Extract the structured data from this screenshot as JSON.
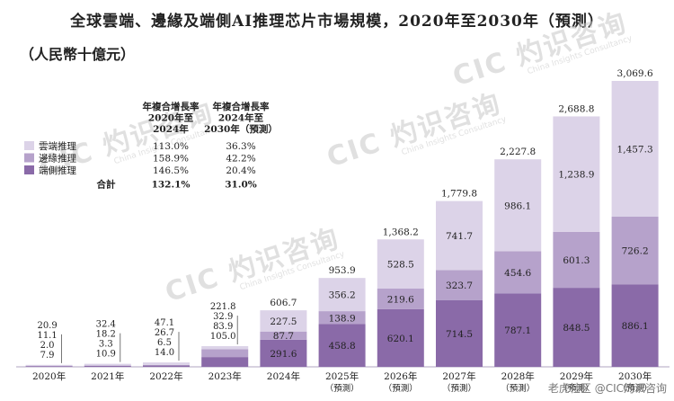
{
  "title": "全球雲端、邊緣及端側AI推理芯片市場規模，2020年至2030年（預測）",
  "unit": "（人民幣十億元）",
  "watermark": {
    "brand": "CIC 灼识咨询",
    "sub": "China Insights Consultancy"
  },
  "source_note": "老虎社区 @CIC灼识咨询",
  "cagr_table": {
    "headers": [
      "年複合增長率\n2020年至\n2024年",
      "年複合增長率\n2024年至\n2030年（預測）"
    ],
    "rows": [
      {
        "label": "雲端推理",
        "c1": "113.0%",
        "c2": "36.3%"
      },
      {
        "label": "邊緣推理",
        "c1": "158.9%",
        "c2": "42.2%"
      },
      {
        "label": "端側推理",
        "c1": "146.5%",
        "c2": "20.4%"
      }
    ],
    "total": {
      "label": "合計",
      "c1": "132.1%",
      "c2": "31.0%"
    }
  },
  "chart_data": {
    "type": "bar",
    "stacked": true,
    "categories": [
      "2020年",
      "2021年",
      "2022年",
      "2023年",
      "2024年",
      "2025年",
      "2026年",
      "2027年",
      "2028年",
      "2029年",
      "2030年"
    ],
    "category_notes": [
      "",
      "",
      "",
      "",
      "",
      "（預測）",
      "（預測）",
      "（預測）",
      "（預測）",
      "（預測）",
      "（預測）"
    ],
    "series": [
      {
        "name": "端側推理",
        "color": "#8a6aa8",
        "values": [
          7.9,
          10.9,
          14.0,
          105.0,
          291.6,
          458.8,
          620.1,
          714.5,
          787.1,
          848.5,
          886.1
        ]
      },
      {
        "name": "邊緣推理",
        "color": "#b6a2cb",
        "values": [
          2.0,
          3.3,
          6.5,
          83.9,
          87.7,
          138.9,
          219.6,
          323.7,
          454.6,
          601.3,
          726.2
        ]
      },
      {
        "name": "雲端推理",
        "color": "#dcd3e8",
        "values": [
          11.1,
          18.2,
          26.7,
          32.9,
          227.5,
          356.2,
          528.5,
          741.7,
          986.1,
          1238.9,
          1457.3
        ]
      }
    ],
    "value_labels": [
      [
        "7.9",
        "10.9",
        "14.0",
        "105.0",
        "291.6",
        "458.8",
        "620.1",
        "714.5",
        "787.1",
        "848.5",
        "886.1"
      ],
      [
        "2.0",
        "3.3",
        "6.5",
        "83.9",
        "87.7",
        "138.9",
        "219.6",
        "323.7",
        "454.6",
        "601.3",
        "726.2"
      ],
      [
        "11.1",
        "18.2",
        "26.7",
        "32.9",
        "227.5",
        "356.2",
        "528.5",
        "741.7",
        "986.1",
        "1,238.9",
        "1,457.3"
      ]
    ],
    "totals": [
      "20.9",
      "32.4",
      "47.1",
      "221.8",
      "606.7",
      "953.9",
      "1,368.2",
      "1,779.8",
      "2,227.8",
      "2,688.8",
      "3,069.6"
    ],
    "ylim": [
      0,
      3069.6
    ]
  }
}
